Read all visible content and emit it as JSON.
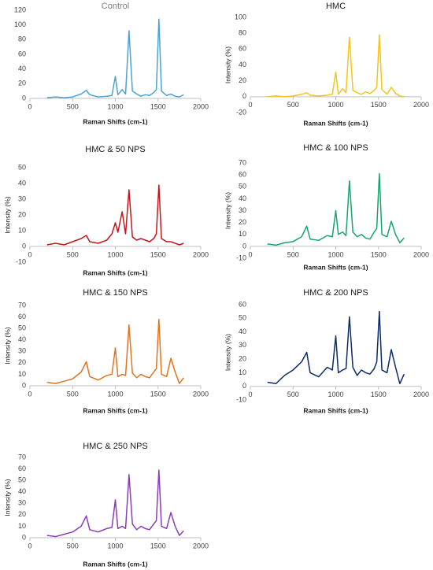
{
  "chart_data": [
    {
      "type": "line",
      "title": "Control",
      "xlabel": "Raman Shifts (cm-1)",
      "x": [
        200,
        300,
        400,
        500,
        600,
        660,
        700,
        800,
        900,
        960,
        1000,
        1030,
        1080,
        1120,
        1160,
        1200,
        1250,
        1300,
        1350,
        1400,
        1450,
        1480,
        1510,
        1540,
        1600,
        1650,
        1700,
        1750,
        1800
      ],
      "series": [
        {
          "color": "#4ba3d3",
          "values": [
            1,
            2,
            1,
            2,
            6,
            11,
            5,
            2,
            3,
            4,
            30,
            5,
            12,
            6,
            92,
            10,
            6,
            3,
            5,
            4,
            8,
            12,
            108,
            10,
            4,
            6,
            3,
            2,
            5
          ]
        }
      ],
      "xlim": [
        0,
        2000
      ],
      "xticks": [
        0,
        500,
        1000,
        1500,
        2000
      ],
      "ylim": [
        0,
        120
      ],
      "yticks": [
        0,
        20,
        40,
        60,
        80,
        100,
        120
      ]
    },
    {
      "type": "line",
      "title": "HMC",
      "xlabel": "Raman Shifts (cm-1)",
      "ylabel": "Intensity (%)",
      "x": [
        200,
        300,
        400,
        500,
        600,
        660,
        700,
        800,
        900,
        960,
        1000,
        1030,
        1080,
        1120,
        1160,
        1200,
        1250,
        1300,
        1350,
        1400,
        1450,
        1480,
        1510,
        1540,
        1600,
        1650,
        1700,
        1750,
        1800
      ],
      "series": [
        {
          "color": "#f5c518",
          "values": [
            0,
            1,
            0,
            1,
            3,
            5,
            2,
            1,
            2,
            3,
            31,
            3,
            10,
            5,
            75,
            8,
            5,
            3,
            6,
            4,
            8,
            12,
            78,
            9,
            3,
            12,
            4,
            1,
            0
          ]
        }
      ],
      "xlim": [
        0,
        2000
      ],
      "xticks": [
        0,
        500,
        1000,
        1500,
        2000
      ],
      "ylim": [
        -20,
        100
      ],
      "yticks": [
        -20,
        0,
        20,
        40,
        60,
        80,
        100
      ]
    },
    {
      "type": "line",
      "title": "HMC & 50 NPS",
      "xlabel": "Raman Shifts (cm-1)",
      "ylabel": "Intensity (%)",
      "x": [
        200,
        300,
        400,
        500,
        600,
        660,
        700,
        800,
        900,
        960,
        1000,
        1030,
        1080,
        1120,
        1160,
        1200,
        1250,
        1300,
        1350,
        1400,
        1450,
        1480,
        1510,
        1540,
        1600,
        1650,
        1700,
        1750,
        1800
      ],
      "series": [
        {
          "color": "#c0171c",
          "values": [
            1,
            2,
            1,
            3,
            5,
            7,
            3,
            2,
            4,
            8,
            15,
            9,
            22,
            8,
            36,
            6,
            4,
            5,
            4,
            3,
            5,
            8,
            39,
            5,
            3,
            3,
            2,
            1,
            2
          ]
        }
      ],
      "xlim": [
        0,
        2000
      ],
      "xticks": [
        0,
        500,
        1000,
        1500,
        2000
      ],
      "ylim": [
        -10,
        50
      ],
      "yticks": [
        -10,
        0,
        10,
        20,
        30,
        40,
        50
      ]
    },
    {
      "type": "line",
      "title": "HMC & 100 NPS",
      "xlabel": "Raman Shifts (cm-1)",
      "ylabel": "Intensity (%)",
      "x": [
        200,
        300,
        400,
        500,
        600,
        660,
        700,
        800,
        900,
        960,
        1000,
        1030,
        1080,
        1120,
        1160,
        1200,
        1250,
        1300,
        1350,
        1400,
        1450,
        1480,
        1510,
        1540,
        1600,
        1650,
        1700,
        1750,
        1800
      ],
      "series": [
        {
          "color": "#14a66b",
          "values": [
            2,
            1,
            3,
            4,
            8,
            17,
            6,
            5,
            9,
            8,
            30,
            10,
            12,
            9,
            55,
            12,
            8,
            10,
            7,
            6,
            12,
            15,
            61,
            10,
            8,
            21,
            10,
            3,
            7
          ]
        }
      ],
      "xlim": [
        0,
        2000
      ],
      "xticks": [
        0,
        500,
        1000,
        1500,
        2000
      ],
      "ylim": [
        -10,
        70
      ],
      "yticks": [
        -10,
        0,
        10,
        20,
        30,
        40,
        50,
        60,
        70
      ]
    },
    {
      "type": "line",
      "title": "HMC & 150 NPS",
      "xlabel": "Raman Shifts (cm-1)",
      "ylabel": "Intensity (%)",
      "x": [
        200,
        300,
        400,
        500,
        600,
        660,
        700,
        800,
        900,
        960,
        1000,
        1030,
        1080,
        1120,
        1160,
        1200,
        1250,
        1300,
        1350,
        1400,
        1450,
        1480,
        1510,
        1540,
        1600,
        1650,
        1700,
        1750,
        1800
      ],
      "series": [
        {
          "color": "#e2731f",
          "values": [
            3,
            2,
            4,
            6,
            12,
            21,
            8,
            5,
            9,
            10,
            33,
            8,
            10,
            9,
            53,
            11,
            7,
            10,
            8,
            7,
            12,
            15,
            58,
            10,
            8,
            24,
            12,
            2,
            7
          ]
        }
      ],
      "xlim": [
        0,
        2000
      ],
      "xticks": [
        0,
        500,
        1000,
        1500,
        2000
      ],
      "ylim": [
        0,
        70
      ],
      "yticks": [
        0,
        10,
        20,
        30,
        40,
        50,
        60,
        70
      ]
    },
    {
      "type": "line",
      "title": "HMC & 200 NPS",
      "xlabel": "Raman Shifts (cm-1)",
      "ylabel": "Intensity (%)",
      "x": [
        200,
        300,
        400,
        500,
        600,
        660,
        700,
        800,
        900,
        960,
        1000,
        1030,
        1080,
        1120,
        1160,
        1200,
        1250,
        1300,
        1350,
        1400,
        1450,
        1480,
        1510,
        1540,
        1600,
        1650,
        1700,
        1750,
        1800
      ],
      "series": [
        {
          "color": "#0d2b6b",
          "values": [
            3,
            2,
            8,
            12,
            18,
            25,
            10,
            7,
            14,
            12,
            37,
            10,
            12,
            13,
            51,
            14,
            8,
            12,
            10,
            9,
            13,
            18,
            55,
            12,
            10,
            27,
            14,
            2,
            9
          ]
        }
      ],
      "xlim": [
        0,
        2000
      ],
      "xticks": [
        0,
        500,
        1000,
        1500,
        2000
      ],
      "ylim": [
        -10,
        60
      ],
      "yticks": [
        -10,
        0,
        10,
        20,
        30,
        40,
        50,
        60
      ]
    },
    {
      "type": "line",
      "title": "HMC & 250 NPS",
      "xlabel": "Raman Shifts (cm-1)",
      "ylabel": "Intensity (%)",
      "x": [
        200,
        300,
        400,
        500,
        600,
        660,
        700,
        800,
        900,
        960,
        1000,
        1030,
        1080,
        1120,
        1160,
        1200,
        1250,
        1300,
        1350,
        1400,
        1450,
        1480,
        1510,
        1540,
        1600,
        1650,
        1700,
        1750,
        1800
      ],
      "series": [
        {
          "color": "#8a3db6",
          "values": [
            2,
            1,
            3,
            5,
            10,
            19,
            7,
            5,
            8,
            9,
            33,
            8,
            10,
            8,
            55,
            12,
            7,
            10,
            8,
            7,
            12,
            15,
            59,
            10,
            8,
            22,
            10,
            2,
            6
          ]
        }
      ],
      "xlim": [
        0,
        2000
      ],
      "xticks": [
        0,
        500,
        1000,
        1500,
        2000
      ],
      "ylim": [
        0,
        70
      ],
      "yticks": [
        0,
        10,
        20,
        30,
        40,
        50,
        60,
        70
      ]
    }
  ]
}
